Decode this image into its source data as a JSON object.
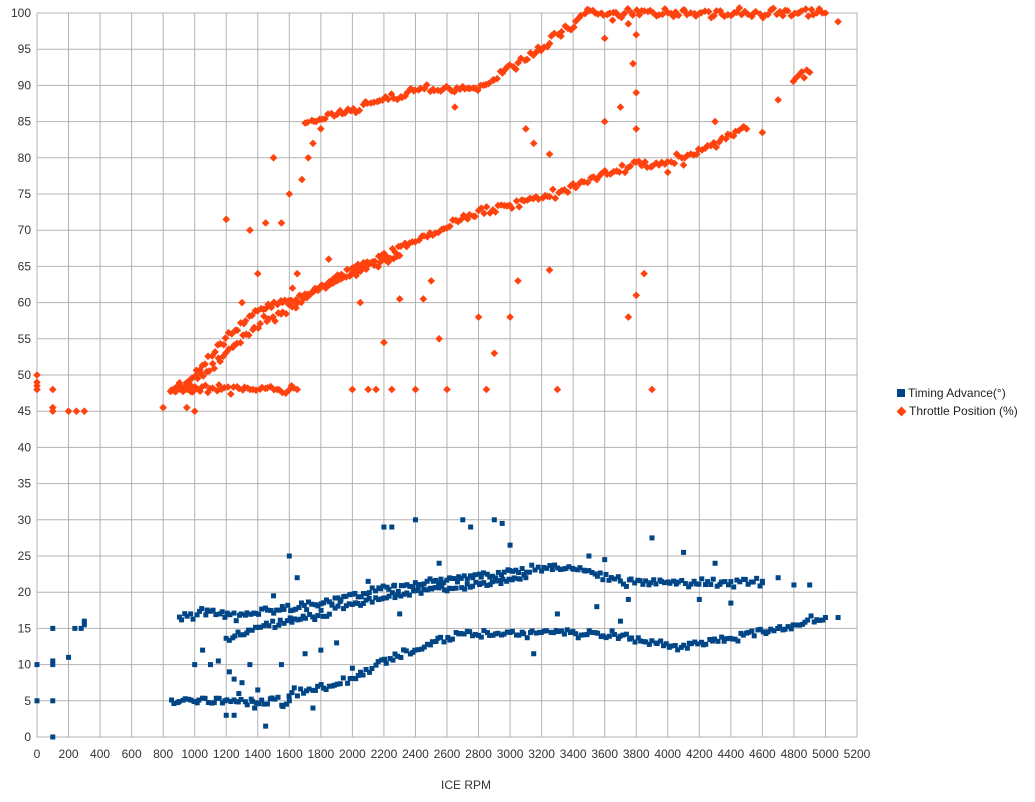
{
  "chart_data": {
    "type": "scatter",
    "title": "",
    "xlabel": "ICE RPM",
    "ylabel": "",
    "xlim": [
      0,
      5200
    ],
    "ylim": [
      0,
      100
    ],
    "x_ticks": [
      0,
      200,
      400,
      600,
      800,
      1000,
      1200,
      1400,
      1600,
      1800,
      2000,
      2200,
      2400,
      2600,
      2800,
      3000,
      3200,
      3400,
      3600,
      3800,
      4000,
      4200,
      4400,
      4600,
      4800,
      5000,
      5200
    ],
    "y_ticks": [
      0,
      5,
      10,
      15,
      20,
      25,
      30,
      35,
      40,
      45,
      50,
      55,
      60,
      65,
      70,
      75,
      80,
      85,
      90,
      95,
      100
    ],
    "grid": true,
    "legend_position": "right",
    "series": [
      {
        "name": "Timing Advance(°)",
        "marker": "square",
        "color": "#004586",
        "trends": [
          [
            [
              900,
              16.5
            ],
            [
              1100,
              17.5
            ],
            [
              1300,
              16.5
            ],
            [
              1500,
              17.5
            ],
            [
              1800,
              18.5
            ],
            [
              2200,
              20.5
            ],
            [
              2600,
              21.8
            ],
            [
              3000,
              22.8
            ],
            [
              3300,
              23.5
            ],
            [
              3500,
              23
            ],
            [
              3700,
              21.5
            ],
            [
              4000,
              21.3
            ],
            [
              4400,
              21.4
            ],
            [
              4600,
              21.3
            ]
          ],
          [
            [
              1200,
              13.5
            ],
            [
              1400,
              15
            ],
            [
              1600,
              16
            ],
            [
              1800,
              17
            ],
            [
              2000,
              18.5
            ],
            [
              2400,
              20
            ],
            [
              2800,
              21.2
            ],
            [
              3100,
              22
            ]
          ],
          [
            [
              1600,
              6
            ],
            [
              1800,
              6.8
            ],
            [
              2000,
              8
            ],
            [
              2200,
              10.5
            ],
            [
              2400,
              12
            ],
            [
              2600,
              13.8
            ],
            [
              2800,
              14.2
            ],
            [
              3000,
              14.4
            ],
            [
              3400,
              14.5
            ],
            [
              3700,
              14
            ],
            [
              3900,
              12.8
            ],
            [
              4100,
              12.6
            ],
            [
              4300,
              13.2
            ],
            [
              4500,
              14.2
            ],
            [
              4800,
              15.5
            ],
            [
              5000,
              16.5
            ]
          ],
          [
            [
              850,
              5
            ],
            [
              1050,
              5
            ],
            [
              1300,
              5
            ],
            [
              1600,
              5
            ]
          ]
        ],
        "extra_points": [
          [
            0,
            10
          ],
          [
            0,
            5
          ],
          [
            100,
            15
          ],
          [
            100,
            10.5
          ],
          [
            100,
            10
          ],
          [
            100,
            5
          ],
          [
            100,
            0
          ],
          [
            200,
            11
          ],
          [
            240,
            15
          ],
          [
            280,
            15
          ],
          [
            300,
            15.5
          ],
          [
            300,
            16
          ],
          [
            1000,
            10
          ],
          [
            1050,
            12
          ],
          [
            1100,
            10
          ],
          [
            1150,
            10.5
          ],
          [
            1200,
            3
          ],
          [
            1220,
            9
          ],
          [
            1250,
            3
          ],
          [
            1250,
            8
          ],
          [
            1280,
            6
          ],
          [
            1300,
            7.5
          ],
          [
            1350,
            10
          ],
          [
            1380,
            4
          ],
          [
            1400,
            6.5
          ],
          [
            1450,
            1.5
          ],
          [
            1500,
            19.5
          ],
          [
            1550,
            10
          ],
          [
            1600,
            25
          ],
          [
            1650,
            22
          ],
          [
            1700,
            11.5
          ],
          [
            1750,
            4
          ],
          [
            1800,
            12
          ],
          [
            1900,
            13
          ],
          [
            2000,
            9.5
          ],
          [
            2100,
            21.5
          ],
          [
            2200,
            29
          ],
          [
            2250,
            29
          ],
          [
            2300,
            17
          ],
          [
            2400,
            30
          ],
          [
            2500,
            20.5
          ],
          [
            2550,
            24
          ],
          [
            2700,
            30
          ],
          [
            2750,
            29
          ],
          [
            2900,
            30
          ],
          [
            2950,
            29.5
          ],
          [
            3000,
            26.5
          ],
          [
            3150,
            11.5
          ],
          [
            3300,
            17
          ],
          [
            3500,
            25
          ],
          [
            3550,
            18
          ],
          [
            3600,
            24.5
          ],
          [
            3700,
            16
          ],
          [
            3750,
            19
          ],
          [
            3900,
            27.5
          ],
          [
            4100,
            25.5
          ],
          [
            4200,
            19
          ],
          [
            4300,
            24
          ],
          [
            4400,
            18.5
          ],
          [
            4600,
            21.5
          ],
          [
            4700,
            22
          ],
          [
            4800,
            21
          ],
          [
            4900,
            21
          ],
          [
            5080,
            16.5
          ]
        ]
      },
      {
        "name": "Throttle Position (%)",
        "marker": "diamond",
        "color": "#ff420e",
        "trends": [
          [
            [
              850,
              48
            ],
            [
              1000,
              49
            ],
            [
              1200,
              53
            ],
            [
              1400,
              57
            ],
            [
              1600,
              59
            ],
            [
              1800,
              62
            ],
            [
              2000,
              64.5
            ],
            [
              2200,
              66.5
            ],
            [
              2400,
              68.5
            ],
            [
              2600,
              70.5
            ],
            [
              2800,
              72.5
            ],
            [
              3000,
              73.5
            ],
            [
              3200,
              74.5
            ],
            [
              3400,
              76
            ],
            [
              3600,
              78
            ],
            [
              3800,
              79
            ],
            [
              4000,
              79.5
            ],
            [
              4200,
              81
            ],
            [
              4400,
              83
            ],
            [
              4500,
              84
            ]
          ],
          [
            [
              950,
              49
            ],
            [
              1050,
              51
            ],
            [
              1200,
              55
            ],
            [
              1400,
              59
            ],
            [
              1700,
              61
            ],
            [
              2000,
              64
            ],
            [
              2300,
              66.5
            ]
          ],
          [
            [
              1700,
              85
            ],
            [
              1900,
              86
            ],
            [
              2100,
              87.5
            ],
            [
              2300,
              88.5
            ],
            [
              2400,
              89.5
            ],
            [
              2700,
              89.5
            ],
            [
              2800,
              89.5
            ],
            [
              2900,
              91
            ],
            [
              3000,
              92.5
            ],
            [
              3200,
              95
            ],
            [
              3300,
              97
            ],
            [
              3400,
              98.5
            ],
            [
              3470,
              100
            ],
            [
              3800,
              100
            ],
            [
              4000,
              100
            ],
            [
              4400,
              100
            ],
            [
              4600,
              100
            ],
            [
              5000,
              100
            ]
          ],
          [
            [
              4800,
              91
            ],
            [
              4900,
              91.8
            ]
          ],
          [
            [
              850,
              48
            ],
            [
              1100,
              48
            ],
            [
              1300,
              48
            ],
            [
              1500,
              48
            ],
            [
              1650,
              48
            ]
          ]
        ],
        "extra_points": [
          [
            0,
            49
          ],
          [
            0,
            48
          ],
          [
            0,
            48.5
          ],
          [
            0,
            50
          ],
          [
            100,
            45
          ],
          [
            100,
            45.5
          ],
          [
            100,
            48
          ],
          [
            200,
            45
          ],
          [
            250,
            45
          ],
          [
            300,
            45
          ],
          [
            800,
            45.5
          ],
          [
            950,
            45.5
          ],
          [
            1000,
            45
          ],
          [
            1200,
            71.5
          ],
          [
            1300,
            60
          ],
          [
            1350,
            70
          ],
          [
            1400,
            64
          ],
          [
            1450,
            71
          ],
          [
            1500,
            80
          ],
          [
            1550,
            71
          ],
          [
            1600,
            75
          ],
          [
            1620,
            62
          ],
          [
            1650,
            64
          ],
          [
            1680,
            77
          ],
          [
            1720,
            80
          ],
          [
            1750,
            82
          ],
          [
            1800,
            84
          ],
          [
            1850,
            66
          ],
          [
            2000,
            48
          ],
          [
            2050,
            60
          ],
          [
            2100,
            48
          ],
          [
            2150,
            48
          ],
          [
            2200,
            54.5
          ],
          [
            2250,
            48
          ],
          [
            2300,
            60.5
          ],
          [
            2400,
            48
          ],
          [
            2450,
            60.5
          ],
          [
            2500,
            63
          ],
          [
            2550,
            55
          ],
          [
            2600,
            48
          ],
          [
            2650,
            87
          ],
          [
            2800,
            58
          ],
          [
            2850,
            48
          ],
          [
            2900,
            53
          ],
          [
            3000,
            58
          ],
          [
            3050,
            63
          ],
          [
            3100,
            84
          ],
          [
            3150,
            82
          ],
          [
            3250,
            80.5
          ],
          [
            3300,
            48
          ],
          [
            3250,
            64.5
          ],
          [
            3600,
            85
          ],
          [
            3700,
            87
          ],
          [
            3750,
            58
          ],
          [
            3800,
            61
          ],
          [
            3850,
            64
          ],
          [
            3900,
            48
          ],
          [
            4000,
            78
          ],
          [
            4100,
            79
          ],
          [
            4300,
            85
          ],
          [
            4600,
            83.5
          ],
          [
            4700,
            88
          ],
          [
            5080,
            98.8
          ],
          [
            3650,
            99
          ],
          [
            3750,
            98.5
          ],
          [
            3800,
            97
          ],
          [
            3800,
            84
          ],
          [
            3800,
            89
          ],
          [
            3600,
            96.5
          ],
          [
            3780,
            93
          ]
        ]
      }
    ]
  }
}
